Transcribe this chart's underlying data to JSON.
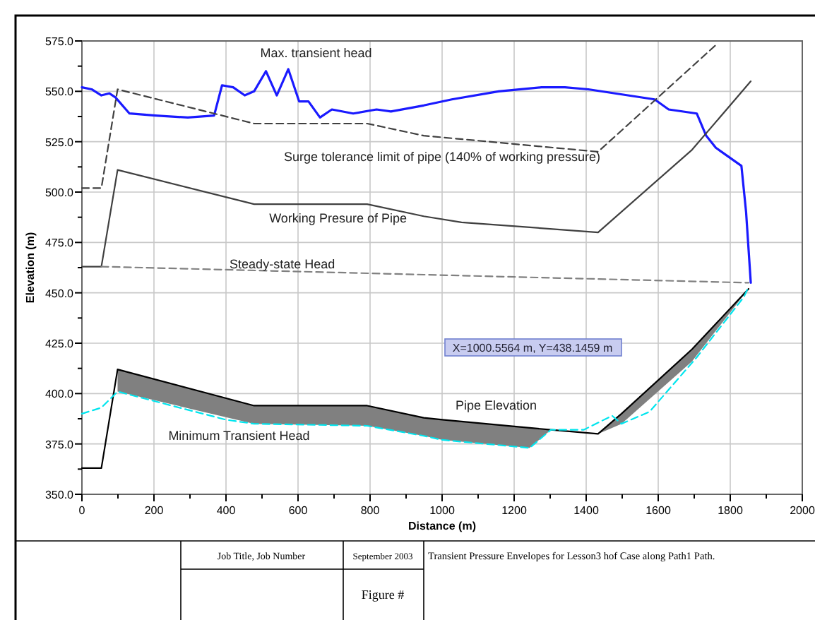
{
  "chart_data": {
    "type": "line",
    "xlabel": "Distance (m)",
    "ylabel": "Elevation (m)",
    "xlim": [
      0,
      2000
    ],
    "ylim": [
      350,
      575
    ],
    "xticks": [
      0,
      {
        "value": 100,
        "label": null
      },
      200,
      {
        "value": 300,
        "label": null
      },
      400,
      {
        "value": 500,
        "label": null
      },
      600,
      {
        "value": 700,
        "label": null
      },
      800,
      {
        "value": 900,
        "label": null
      },
      1000,
      {
        "value": 1100,
        "label": null
      },
      1200,
      {
        "value": 1300,
        "label": null
      },
      1400,
      {
        "value": 1500,
        "label": null
      },
      1600,
      {
        "value": 1700,
        "label": null
      },
      1800,
      {
        "value": 1900,
        "label": null
      },
      2000
    ],
    "yticks": [
      {
        "value": 350,
        "label": "350.0"
      },
      {
        "value": 362.5,
        "label": null
      },
      {
        "value": 375,
        "label": "375.0"
      },
      {
        "value": 387.5,
        "label": null
      },
      {
        "value": 400,
        "label": "400.0"
      },
      {
        "value": 412.5,
        "label": null
      },
      {
        "value": 425,
        "label": "425.0"
      },
      {
        "value": 437.5,
        "label": null
      },
      {
        "value": 450,
        "label": "450.0"
      },
      {
        "value": 462.5,
        "label": null
      },
      {
        "value": 475,
        "label": "475.0"
      },
      {
        "value": 487.5,
        "label": null
      },
      {
        "value": 500,
        "label": "500.0"
      },
      {
        "value": 512.5,
        "label": null
      },
      {
        "value": 525,
        "label": "525.0"
      },
      {
        "value": 537.5,
        "label": null
      },
      {
        "value": 550,
        "label": "550.0"
      },
      {
        "value": 562.5,
        "label": null
      },
      {
        "value": 575,
        "label": "575.0"
      }
    ],
    "grid": true,
    "legend": false,
    "marker": "none",
    "series": [
      {
        "name": "Max. transient head",
        "color": "#1a1aff",
        "line_style": "solid",
        "x": [
          0,
          27,
          54,
          76,
          93,
          132,
          204,
          294,
          367,
          389,
          420,
          452,
          478,
          511,
          541,
          573,
          603,
          629,
          661,
          694,
          753,
          818,
          858,
          949,
          1027,
          1157,
          1276,
          1341,
          1406,
          1590,
          1629,
          1707,
          1733,
          1760,
          1831,
          1844,
          1857
        ],
        "values": [
          552,
          551,
          548,
          549,
          547,
          539,
          538,
          537,
          538,
          553,
          552,
          548,
          550,
          560,
          548,
          561,
          545,
          545,
          537,
          541,
          539,
          541,
          540,
          543,
          546,
          550,
          552,
          552,
          551,
          546,
          541,
          539,
          528,
          522,
          513,
          490,
          455
        ]
      },
      {
        "name": "Surge tolerance limit of pipe (140% of working pressure)",
        "color": "#404040",
        "line_style": "dashed",
        "x": [
          0,
          54,
          99,
          478,
          792,
          949,
          1433,
          1760
        ],
        "values": [
          502,
          502,
          551,
          534,
          534,
          528,
          520,
          573
        ]
      },
      {
        "name": "Working Presure of Pipe",
        "color": "#404040",
        "line_style": "solid",
        "x": [
          0,
          54,
          99,
          478,
          792,
          949,
          1054,
          1433,
          1694,
          1857
        ],
        "values": [
          463,
          463,
          511,
          494,
          494,
          488,
          485,
          480,
          521,
          555
        ]
      },
      {
        "name": "Steady-state Head",
        "color": "#808080",
        "line_style": "dashed",
        "x": [
          54,
          949,
          1851
        ],
        "values": [
          463,
          459,
          455
        ]
      },
      {
        "name": "Pipe Elevation",
        "color": "#000000",
        "line_style": "solid",
        "x": [
          0,
          54,
          99,
          478,
          792,
          949,
          1001,
          1243,
          1302,
          1433,
          1498,
          1694,
          1851
        ],
        "values": [
          363,
          363,
          412,
          394,
          394,
          388,
          387,
          383,
          382,
          380,
          390,
          422,
          452
        ],
        "lower": [
          null,
          null,
          401,
          385,
          384,
          379,
          377,
          373,
          382,
          380,
          385,
          416,
          452
        ],
        "upper": [
          null,
          null,
          412,
          394,
          394,
          388,
          387,
          383,
          382,
          380,
          390,
          422,
          452
        ]
      },
      {
        "name": "Minimum Transient Head",
        "color": "#00e5ee",
        "line_style": "dashed",
        "x": [
          0,
          54,
          99,
          400,
          478,
          792,
          949,
          1001,
          1243,
          1302,
          1393,
          1472,
          1498,
          1576,
          1707,
          1838,
          1851
        ],
        "values": [
          390,
          393,
          401,
          387,
          385,
          384,
          379,
          377,
          373,
          382,
          382,
          389,
          385,
          391,
          418,
          448,
          453
        ]
      }
    ],
    "annotations": [
      "X=1000.5564 m, Y=438.1459 m",
      "Job Title, Job Number",
      "September 2003",
      "Transient Pressure Envelopes for Lesson3 hof Case along Path1 Path.",
      "Figure #"
    ]
  }
}
